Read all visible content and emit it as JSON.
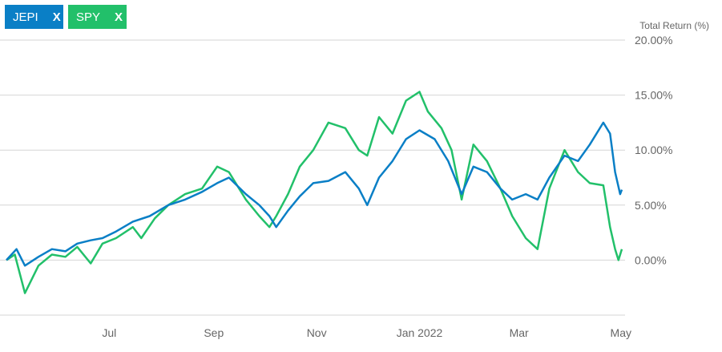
{
  "legend": [
    {
      "name": "JEPI",
      "color": "#0a7fc6",
      "remove_label": "X"
    },
    {
      "name": "SPY",
      "color": "#22c06a",
      "remove_label": "X"
    }
  ],
  "chart_data": {
    "type": "line",
    "ylabel": "Total Return (%)",
    "ylim": [
      -5,
      20
    ],
    "yticks": [
      0,
      5,
      10,
      15,
      20
    ],
    "ytick_labels": [
      "0.00%",
      "5.00%",
      "10.00%",
      "15.00%",
      "20.00%"
    ],
    "x_ticks": [
      {
        "label": "Jul",
        "date": "2021-07-01"
      },
      {
        "label": "Sep",
        "date": "2021-09-01"
      },
      {
        "label": "Nov",
        "date": "2021-11-01"
      },
      {
        "label": "Jan 2022",
        "date": "2022-01-01"
      },
      {
        "label": "Mar",
        "date": "2022-03-01"
      },
      {
        "label": "May",
        "date": "2022-05-01"
      }
    ],
    "x_range": [
      "2021-05-01",
      "2022-05-01"
    ],
    "grid": true,
    "legend_position": "top-left",
    "series": [
      {
        "name": "JEPI",
        "color": "#0a7fc6",
        "points": [
          [
            "2021-05-01",
            0.0
          ],
          [
            "2021-05-07",
            1.0
          ],
          [
            "2021-05-12",
            -0.5
          ],
          [
            "2021-05-20",
            0.3
          ],
          [
            "2021-05-28",
            1.0
          ],
          [
            "2021-06-05",
            0.8
          ],
          [
            "2021-06-12",
            1.5
          ],
          [
            "2021-06-20",
            1.8
          ],
          [
            "2021-06-27",
            2.0
          ],
          [
            "2021-07-05",
            2.6
          ],
          [
            "2021-07-15",
            3.5
          ],
          [
            "2021-07-25",
            4.0
          ],
          [
            "2021-08-05",
            5.0
          ],
          [
            "2021-08-15",
            5.5
          ],
          [
            "2021-08-25",
            6.2
          ],
          [
            "2021-09-03",
            7.0
          ],
          [
            "2021-09-10",
            7.5
          ],
          [
            "2021-09-20",
            6.0
          ],
          [
            "2021-09-28",
            5.0
          ],
          [
            "2021-10-04",
            4.0
          ],
          [
            "2021-10-08",
            3.0
          ],
          [
            "2021-10-15",
            4.5
          ],
          [
            "2021-10-22",
            5.8
          ],
          [
            "2021-10-30",
            7.0
          ],
          [
            "2021-11-08",
            7.2
          ],
          [
            "2021-11-18",
            8.0
          ],
          [
            "2021-11-26",
            6.5
          ],
          [
            "2021-12-01",
            5.0
          ],
          [
            "2021-12-08",
            7.5
          ],
          [
            "2021-12-16",
            9.0
          ],
          [
            "2021-12-24",
            11.0
          ],
          [
            "2022-01-01",
            11.8
          ],
          [
            "2022-01-10",
            11.0
          ],
          [
            "2022-01-18",
            9.0
          ],
          [
            "2022-01-26",
            6.0
          ],
          [
            "2022-02-02",
            8.5
          ],
          [
            "2022-02-10",
            8.0
          ],
          [
            "2022-02-18",
            6.5
          ],
          [
            "2022-02-25",
            5.5
          ],
          [
            "2022-03-05",
            6.0
          ],
          [
            "2022-03-12",
            5.5
          ],
          [
            "2022-03-19",
            7.5
          ],
          [
            "2022-03-28",
            9.5
          ],
          [
            "2022-04-05",
            9.0
          ],
          [
            "2022-04-12",
            10.5
          ],
          [
            "2022-04-20",
            12.5
          ],
          [
            "2022-04-24",
            11.5
          ],
          [
            "2022-04-27",
            8.0
          ],
          [
            "2022-04-30",
            6.0
          ],
          [
            "2022-05-01",
            6.4
          ]
        ]
      },
      {
        "name": "SPY",
        "color": "#22c06a",
        "points": [
          [
            "2021-05-01",
            0.0
          ],
          [
            "2021-05-06",
            0.5
          ],
          [
            "2021-05-12",
            -3.0
          ],
          [
            "2021-05-20",
            -0.5
          ],
          [
            "2021-05-28",
            0.5
          ],
          [
            "2021-06-05",
            0.3
          ],
          [
            "2021-06-12",
            1.2
          ],
          [
            "2021-06-20",
            -0.3
          ],
          [
            "2021-06-27",
            1.5
          ],
          [
            "2021-07-05",
            2.0
          ],
          [
            "2021-07-15",
            3.0
          ],
          [
            "2021-07-20",
            2.0
          ],
          [
            "2021-07-28",
            3.8
          ],
          [
            "2021-08-05",
            5.0
          ],
          [
            "2021-08-15",
            6.0
          ],
          [
            "2021-08-25",
            6.5
          ],
          [
            "2021-09-03",
            8.5
          ],
          [
            "2021-09-10",
            8.0
          ],
          [
            "2021-09-20",
            5.5
          ],
          [
            "2021-09-28",
            4.0
          ],
          [
            "2021-10-04",
            3.0
          ],
          [
            "2021-10-08",
            4.0
          ],
          [
            "2021-10-15",
            6.0
          ],
          [
            "2021-10-22",
            8.5
          ],
          [
            "2021-10-30",
            10.0
          ],
          [
            "2021-11-08",
            12.5
          ],
          [
            "2021-11-18",
            12.0
          ],
          [
            "2021-11-26",
            10.0
          ],
          [
            "2021-12-01",
            9.5
          ],
          [
            "2021-12-08",
            13.0
          ],
          [
            "2021-12-16",
            11.5
          ],
          [
            "2021-12-24",
            14.5
          ],
          [
            "2022-01-01",
            15.3
          ],
          [
            "2022-01-06",
            13.5
          ],
          [
            "2022-01-14",
            12.0
          ],
          [
            "2022-01-20",
            10.0
          ],
          [
            "2022-01-26",
            5.5
          ],
          [
            "2022-02-02",
            10.5
          ],
          [
            "2022-02-10",
            9.0
          ],
          [
            "2022-02-18",
            6.5
          ],
          [
            "2022-02-25",
            4.0
          ],
          [
            "2022-03-05",
            2.0
          ],
          [
            "2022-03-12",
            1.0
          ],
          [
            "2022-03-19",
            6.5
          ],
          [
            "2022-03-28",
            10.0
          ],
          [
            "2022-04-05",
            8.0
          ],
          [
            "2022-04-12",
            7.0
          ],
          [
            "2022-04-20",
            6.8
          ],
          [
            "2022-04-24",
            3.0
          ],
          [
            "2022-04-27",
            1.0
          ],
          [
            "2022-04-29",
            0.0
          ],
          [
            "2022-05-01",
            1.0
          ]
        ]
      }
    ]
  }
}
